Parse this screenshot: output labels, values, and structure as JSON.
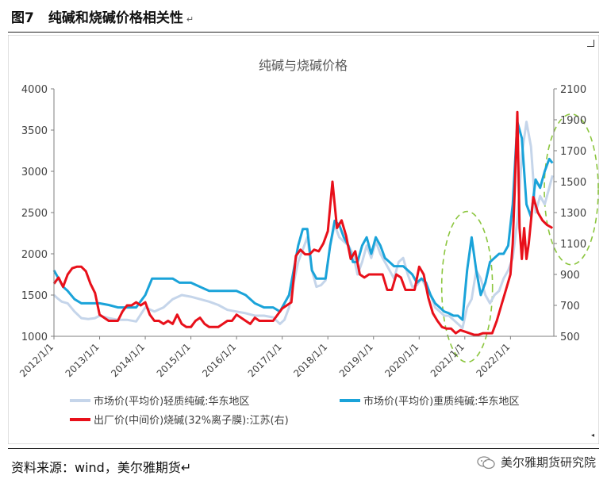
{
  "header": {
    "figure_number": "图7",
    "figure_title": "纯碱和烧碱价格相关性",
    "return_mark": "↵"
  },
  "footer": {
    "source": "资料来源：wind，美尔雅期货↵",
    "watermark": "美尔雅期货研究院",
    "watermark_icon": "wechat-icon"
  },
  "chart_data": {
    "type": "line",
    "title": "纯碱与烧碱价格",
    "x_ticks": [
      "2012/1/1",
      "2013/1/1",
      "2014/1/1",
      "2015/1/1",
      "2016/1/1",
      "2017/1/1",
      "2018/1/1",
      "2019/1/1",
      "2020/1/1",
      "2021/1/1",
      "2022/1/1"
    ],
    "x_range": [
      2012.0,
      2022.95
    ],
    "y_left": {
      "ticks": [
        1000,
        1500,
        2000,
        2500,
        3000,
        3500,
        4000
      ],
      "range": [
        1000,
        4000
      ]
    },
    "y_right": {
      "ticks": [
        500,
        700,
        900,
        1100,
        1300,
        1500,
        1700,
        1900,
        2100
      ],
      "range": [
        500,
        2100
      ]
    },
    "series": [
      {
        "name": "市场价(平均价)轻质纯碱:华东地区",
        "axis": "left",
        "color": "#c5d5ea",
        "x": [
          2012.0,
          2012.08,
          2012.17,
          2012.3,
          2012.45,
          2012.6,
          2012.75,
          2012.9,
          2013.0,
          2013.2,
          2013.4,
          2013.6,
          2013.8,
          2014.0,
          2014.2,
          2014.4,
          2014.6,
          2014.8,
          2015.0,
          2015.2,
          2015.4,
          2015.6,
          2015.8,
          2016.0,
          2016.2,
          2016.4,
          2016.6,
          2016.8,
          2016.95,
          2017.05,
          2017.15,
          2017.25,
          2017.35,
          2017.45,
          2017.55,
          2017.65,
          2017.75,
          2017.85,
          2017.95,
          2018.05,
          2018.15,
          2018.25,
          2018.35,
          2018.45,
          2018.55,
          2018.65,
          2018.75,
          2018.85,
          2018.95,
          2019.05,
          2019.15,
          2019.25,
          2019.35,
          2019.45,
          2019.55,
          2019.65,
          2019.75,
          2019.85,
          2019.95,
          2020.05,
          2020.15,
          2020.25,
          2020.35,
          2020.45,
          2020.55,
          2020.65,
          2020.75,
          2020.85,
          2020.95,
          2021.05,
          2021.15,
          2021.25,
          2021.35,
          2021.45,
          2021.55,
          2021.65,
          2021.75,
          2021.85,
          2021.95,
          2022.05,
          2022.15,
          2022.25,
          2022.35,
          2022.45,
          2022.55,
          2022.65,
          2022.75,
          2022.85,
          2022.92
        ],
        "y": [
          1500,
          1460,
          1420,
          1400,
          1300,
          1220,
          1210,
          1220,
          1250,
          1220,
          1200,
          1200,
          1180,
          1350,
          1300,
          1350,
          1450,
          1500,
          1480,
          1450,
          1420,
          1380,
          1320,
          1300,
          1280,
          1250,
          1250,
          1230,
          1150,
          1200,
          1350,
          1650,
          1900,
          2050,
          2200,
          1800,
          1600,
          1620,
          1680,
          2100,
          2350,
          2200,
          2150,
          2100,
          2000,
          1750,
          1900,
          2100,
          1950,
          2150,
          2000,
          1900,
          1800,
          1700,
          1900,
          1950,
          1750,
          1600,
          1620,
          1700,
          1600,
          1500,
          1350,
          1300,
          1250,
          1250,
          1200,
          1150,
          1100,
          1350,
          1450,
          1800,
          1700,
          1500,
          1400,
          1500,
          1550,
          1700,
          1800,
          1950,
          2400,
          3200,
          3600,
          3300,
          2500,
          2700,
          2600,
          2800,
          2950
        ]
      },
      {
        "name": "市场价(平均价)重质纯碱:华东地区",
        "axis": "left",
        "color": "#1aa3d9",
        "x": [
          2012.0,
          2012.1,
          2012.2,
          2012.3,
          2012.45,
          2012.6,
          2012.75,
          2012.9,
          2013.0,
          2013.2,
          2013.4,
          2013.6,
          2013.8,
          2014.0,
          2014.15,
          2014.3,
          2014.45,
          2014.6,
          2014.75,
          2014.9,
          2015.0,
          2015.2,
          2015.4,
          2015.6,
          2015.8,
          2016.0,
          2016.2,
          2016.4,
          2016.6,
          2016.8,
          2016.95,
          2017.05,
          2017.15,
          2017.25,
          2017.35,
          2017.45,
          2017.55,
          2017.65,
          2017.75,
          2017.85,
          2017.95,
          2018.05,
          2018.15,
          2018.25,
          2018.35,
          2018.45,
          2018.55,
          2018.65,
          2018.75,
          2018.85,
          2018.95,
          2019.05,
          2019.15,
          2019.25,
          2019.35,
          2019.45,
          2019.55,
          2019.65,
          2019.75,
          2019.85,
          2019.95,
          2020.05,
          2020.15,
          2020.25,
          2020.35,
          2020.45,
          2020.55,
          2020.65,
          2020.75,
          2020.85,
          2020.95,
          2021.05,
          2021.15,
          2021.25,
          2021.35,
          2021.45,
          2021.55,
          2021.65,
          2021.75,
          2021.85,
          2021.95,
          2022.05,
          2022.15,
          2022.25,
          2022.35,
          2022.45,
          2022.55,
          2022.65,
          2022.75,
          2022.85,
          2022.92
        ],
        "y": [
          1800,
          1700,
          1600,
          1550,
          1450,
          1400,
          1400,
          1400,
          1400,
          1380,
          1350,
          1350,
          1350,
          1500,
          1700,
          1700,
          1700,
          1700,
          1650,
          1650,
          1650,
          1600,
          1550,
          1550,
          1550,
          1550,
          1500,
          1400,
          1350,
          1350,
          1300,
          1400,
          1500,
          1800,
          2100,
          2300,
          2300,
          1800,
          1700,
          1700,
          1700,
          2100,
          2400,
          2350,
          2200,
          2100,
          1900,
          1900,
          2100,
          2200,
          2000,
          2200,
          2100,
          1950,
          1900,
          1850,
          1850,
          1850,
          1800,
          1750,
          1650,
          1700,
          1650,
          1500,
          1400,
          1350,
          1300,
          1280,
          1250,
          1250,
          1200,
          1800,
          2200,
          1800,
          1500,
          1650,
          1900,
          1950,
          2000,
          2000,
          2100,
          2600,
          3600,
          3400,
          2600,
          2450,
          2900,
          2800,
          3000,
          3150,
          3100
        ]
      },
      {
        "name": "出厂价(中间价)烧碱(32%离子膜):江苏(右)",
        "axis": "right",
        "color": "#e8101a",
        "x": [
          2012.0,
          2012.1,
          2012.2,
          2012.3,
          2012.4,
          2012.5,
          2012.6,
          2012.7,
          2012.8,
          2012.9,
          2013.0,
          2013.1,
          2013.2,
          2013.3,
          2013.4,
          2013.5,
          2013.6,
          2013.7,
          2013.8,
          2013.9,
          2014.0,
          2014.1,
          2014.2,
          2014.3,
          2014.4,
          2014.5,
          2014.6,
          2014.7,
          2014.8,
          2014.9,
          2015.0,
          2015.1,
          2015.2,
          2015.3,
          2015.4,
          2015.5,
          2015.6,
          2015.7,
          2015.8,
          2015.9,
          2016.0,
          2016.1,
          2016.2,
          2016.3,
          2016.4,
          2016.5,
          2016.6,
          2016.7,
          2016.8,
          2016.9,
          2017.0,
          2017.1,
          2017.2,
          2017.3,
          2017.4,
          2017.5,
          2017.6,
          2017.7,
          2017.8,
          2017.9,
          2018.0,
          2018.1,
          2018.2,
          2018.3,
          2018.4,
          2018.5,
          2018.6,
          2018.7,
          2018.8,
          2018.9,
          2019.0,
          2019.1,
          2019.2,
          2019.3,
          2019.4,
          2019.5,
          2019.6,
          2019.7,
          2019.8,
          2019.9,
          2020.0,
          2020.1,
          2020.2,
          2020.3,
          2020.4,
          2020.5,
          2020.6,
          2020.7,
          2020.8,
          2020.9,
          2021.0,
          2021.1,
          2021.2,
          2021.3,
          2021.4,
          2021.5,
          2021.6,
          2021.7,
          2021.8,
          2021.9,
          2022.0,
          2022.05,
          2022.1,
          2022.15,
          2022.2,
          2022.25,
          2022.3,
          2022.35,
          2022.4,
          2022.5,
          2022.6,
          2022.7,
          2022.8,
          2022.92
        ],
        "y": [
          840,
          880,
          820,
          900,
          940,
          950,
          950,
          920,
          840,
          780,
          640,
          620,
          600,
          600,
          600,
          660,
          700,
          700,
          720,
          700,
          720,
          640,
          600,
          600,
          580,
          600,
          580,
          640,
          580,
          560,
          560,
          600,
          620,
          580,
          560,
          560,
          560,
          580,
          600,
          600,
          640,
          620,
          600,
          580,
          620,
          600,
          600,
          600,
          600,
          640,
          680,
          700,
          720,
          1020,
          1060,
          1030,
          1030,
          1060,
          1050,
          1100,
          1180,
          1500,
          1200,
          1250,
          1150,
          1000,
          1050,
          900,
          880,
          900,
          900,
          900,
          900,
          800,
          800,
          900,
          880,
          800,
          800,
          800,
          950,
          900,
          750,
          650,
          600,
          560,
          550,
          550,
          520,
          540,
          530,
          520,
          510,
          510,
          520,
          520,
          520,
          600,
          700,
          800,
          900,
          1100,
          1500,
          1950,
          1200,
          1000,
          1200,
          1000,
          1100,
          1400,
          1300,
          1250,
          1220,
          1200
        ]
      }
    ],
    "legend_position": "bottom",
    "annotations": [
      "green dashed ellipse around 2021 纯碱 rise",
      "green dashed ellipse around 2022 right-axis region"
    ]
  }
}
